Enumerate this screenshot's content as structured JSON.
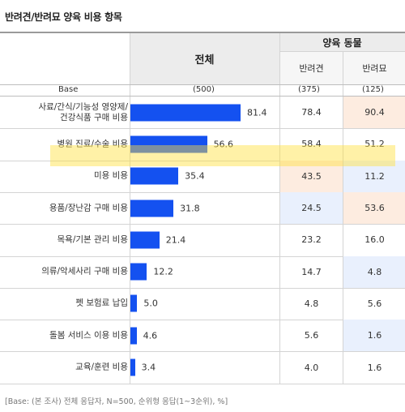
{
  "title": "반려견/반려묘 양육 비용 항목",
  "header": {
    "total": "전체",
    "group": "양육 동물",
    "dog": "반려견",
    "cat": "반려묘"
  },
  "base": {
    "label": "Base",
    "total": "(500)",
    "dog": "(375)",
    "cat": "(125)"
  },
  "colors": {
    "bar": "#1451f0",
    "hot": "#fdece0",
    "cold": "#e9f0fd"
  },
  "chart_data": {
    "type": "bar",
    "orientation": "horizontal",
    "categories": [
      "사료/간식/기능성 영양제/\n건강식품 구매 비용",
      "병원 진료/수술 비용",
      "미용 비용",
      "용품/장난감 구매 비용",
      "목욕/기본 관리 비용",
      "의류/악세사리 구매 비용",
      "펫 보험료 납입",
      "돌봄 서비스 이용 비용",
      "교육/훈련 비용"
    ],
    "series": [
      {
        "name": "전체",
        "values": [
          81.4,
          56.6,
          35.4,
          31.8,
          21.4,
          12.2,
          5.0,
          4.6,
          3.4
        ]
      },
      {
        "name": "반려견",
        "values": [
          78.4,
          58.4,
          43.5,
          24.5,
          23.2,
          14.7,
          4.8,
          5.6,
          4.0
        ]
      },
      {
        "name": "반려묘",
        "values": [
          90.4,
          51.2,
          11.2,
          53.6,
          16.0,
          4.8,
          5.6,
          1.6,
          1.6
        ]
      }
    ],
    "cell_tint": {
      "반려견": [
        "",
        "",
        "hot",
        "cold",
        "",
        "",
        "",
        "",
        ""
      ],
      "반려묘": [
        "hot",
        "",
        "cold",
        "hot",
        "",
        "cold",
        "",
        "cold",
        ""
      ]
    },
    "xlim": [
      0,
      100
    ]
  },
  "footnote": "[Base: (본 조사) 전체 응답자, N=500, 순위형 응답(1~3순위), %]"
}
